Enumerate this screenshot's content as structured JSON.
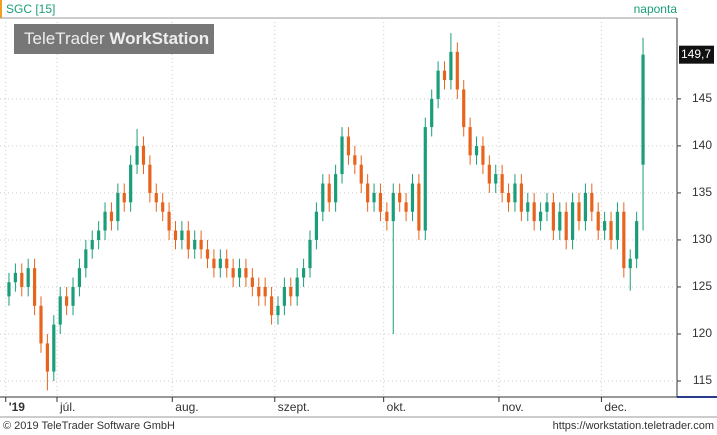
{
  "chart_data": {
    "type": "candlestick",
    "title": "SGC [15]",
    "period": "naponta",
    "logo": [
      "TeleTrader",
      "WorkStation"
    ],
    "footer": [
      "© 2019 TeleTrader Software GmbH",
      "https://workstation.teletrader.com"
    ],
    "last_label": "149,7",
    "up_color": "#1a9e7a",
    "down_color": "#e8641e",
    "grid": true,
    "ylim": [
      113.3,
      153.6
    ],
    "yticks": [
      115,
      120,
      125,
      130,
      135,
      140,
      145
    ],
    "xlim": [
      -0.9,
      104.8
    ],
    "xticks": [
      {
        "value": 0,
        "label": "'19"
      },
      {
        "value": 8,
        "label": "júl."
      },
      {
        "value": 26,
        "label": "aug."
      },
      {
        "value": 42,
        "label": "szept."
      },
      {
        "value": 59,
        "label": "okt."
      },
      {
        "value": 77,
        "label": "nov."
      },
      {
        "value": 93,
        "label": "dec."
      }
    ],
    "open": [
      124,
      125.5,
      126.5,
      125,
      127,
      123,
      119,
      116,
      121,
      124,
      123,
      125,
      127,
      129,
      130,
      131,
      133,
      132,
      135,
      134,
      138,
      140,
      138,
      135,
      134,
      133,
      131,
      130,
      131,
      129,
      130,
      129,
      128,
      127,
      128,
      127,
      126,
      127,
      126,
      125,
      125,
      124,
      122,
      123,
      125,
      124,
      126,
      127,
      130,
      133,
      136,
      134,
      137,
      141,
      139,
      138,
      136,
      134,
      135,
      133,
      132,
      135,
      134,
      133,
      136,
      131,
      142,
      145,
      148,
      147,
      150,
      146,
      142,
      139,
      140,
      138,
      136,
      137,
      135,
      134,
      136,
      133,
      134,
      132,
      133,
      134,
      131,
      133,
      130,
      134,
      132,
      135,
      133,
      131,
      132,
      130,
      133,
      127,
      128,
      138
    ],
    "high": [
      126.5,
      127.5,
      127.5,
      128,
      128,
      124,
      120,
      122,
      125,
      125,
      126,
      128,
      130,
      131,
      132,
      134,
      134,
      136,
      136,
      139,
      141.8,
      141,
      139,
      136,
      135,
      134,
      132,
      132,
      132,
      131,
      131,
      130,
      129,
      129,
      129,
      128,
      128,
      128,
      127,
      126,
      126,
      125,
      124,
      126,
      126,
      127,
      128,
      131,
      134,
      137,
      137,
      138,
      142,
      142,
      140,
      139,
      137,
      136,
      136,
      134,
      136,
      136,
      135,
      137,
      137,
      143,
      146,
      149,
      149,
      152,
      151,
      147,
      143,
      141,
      141,
      139,
      138,
      138,
      136,
      137,
      137,
      135,
      135,
      134,
      135,
      135,
      134,
      134,
      135,
      135,
      136,
      136,
      134,
      133,
      133,
      134,
      134,
      129,
      133,
      151.5
    ],
    "low": [
      123,
      124.5,
      124,
      124,
      122,
      118,
      114,
      115,
      120,
      122,
      122,
      124,
      126,
      128,
      129,
      130,
      131,
      131,
      133,
      133,
      137,
      137,
      134,
      133,
      132,
      130,
      129,
      129,
      128,
      128,
      128,
      127,
      126,
      126,
      126,
      125,
      125,
      125,
      124,
      123,
      123,
      121,
      121,
      122,
      123,
      123,
      125,
      126,
      129,
      132,
      133,
      133,
      136,
      138,
      137,
      135,
      133,
      133,
      132,
      131,
      120,
      133,
      132,
      132,
      130,
      130,
      141,
      144,
      146,
      146,
      145,
      141,
      138,
      138,
      137,
      135,
      135,
      134,
      133,
      133,
      132,
      132,
      131,
      131,
      132,
      130,
      130,
      129,
      129,
      131,
      131,
      132,
      130,
      130,
      129,
      129,
      126,
      124.6,
      127,
      131
    ],
    "close": [
      125.5,
      126.5,
      125,
      127,
      123,
      119,
      116,
      121,
      124,
      123,
      125,
      127,
      129,
      130,
      131,
      133,
      132,
      135,
      134,
      138,
      140,
      138,
      135,
      134,
      133,
      131,
      130,
      131,
      129,
      130,
      129,
      128,
      127,
      128,
      127,
      126,
      127,
      126,
      125,
      124,
      124,
      122,
      123,
      125,
      124,
      126,
      127,
      130,
      133,
      136,
      134,
      137,
      141,
      139,
      138,
      136,
      134,
      135,
      133,
      132,
      135,
      134,
      133,
      136,
      131,
      142,
      145,
      148,
      147,
      150,
      146,
      142,
      139,
      140,
      138,
      136,
      137,
      135,
      134,
      136,
      133,
      134,
      132,
      133,
      134,
      131,
      133,
      130,
      134,
      132,
      135,
      133,
      131,
      132,
      130,
      133,
      127,
      128,
      132,
      149.7
    ]
  }
}
